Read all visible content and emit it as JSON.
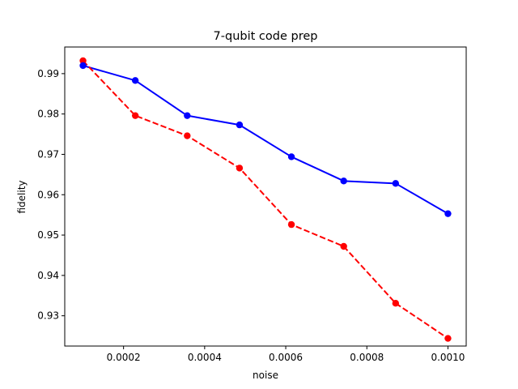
{
  "chart_data": {
    "type": "line",
    "title": "7-qubit code prep",
    "xlabel": "noise",
    "ylabel": "fidelity",
    "xlim": [
      5.5e-05,
      0.001045
    ],
    "ylim": [
      0.9225,
      0.9966
    ],
    "grid": false,
    "x_ticks": [
      0.0002,
      0.0004,
      0.0006,
      0.0008,
      0.001
    ],
    "x_tick_labels": [
      "0.0002",
      "0.0004",
      "0.0006",
      "0.0008",
      "0.0010"
    ],
    "y_ticks": [
      0.93,
      0.94,
      0.95,
      0.96,
      0.97,
      0.98,
      0.99
    ],
    "y_tick_labels": [
      "0.93",
      "0.94",
      "0.95",
      "0.96",
      "0.97",
      "0.98",
      "0.99"
    ],
    "x": [
      0.0001,
      0.000229,
      0.000357,
      0.000486,
      0.000614,
      0.000743,
      0.000871,
      0.001
    ],
    "series": [
      {
        "color": "#0000ff",
        "style": "solid",
        "marker": "circle",
        "values": [
          0.992,
          0.9883,
          0.9796,
          0.9773,
          0.9694,
          0.9634,
          0.9628,
          0.9553
        ]
      },
      {
        "color": "#ff0000",
        "style": "dashed",
        "marker": "circle",
        "values": [
          0.9932,
          0.9796,
          0.9746,
          0.9666,
          0.9526,
          0.9472,
          0.9331,
          0.9244
        ]
      }
    ]
  }
}
